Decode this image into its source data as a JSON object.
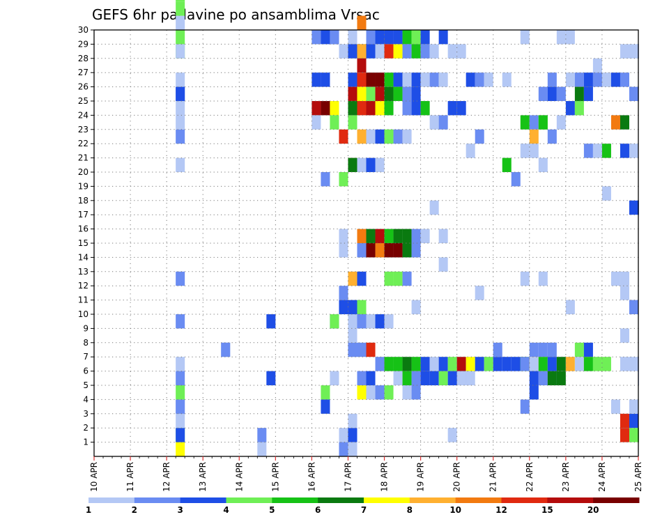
{
  "chart_data": {
    "type": "heatmap",
    "title": "GEFS 6hr padavine po ansamblima Vrsac",
    "xlabel": "",
    "ylabel": "",
    "x_tick_labels": [
      "10 APR",
      "11 APR",
      "12 APR",
      "13 APR",
      "14 APR",
      "15 APR",
      "16 APR",
      "17 APR",
      "18 APR",
      "19 APR",
      "20 APR",
      "21 APR",
      "22 APR",
      "23 APR",
      "24 APR",
      "25 APR"
    ],
    "x_range": [
      0,
      60
    ],
    "x_unit": "6-hour steps from 10 APR 00Z",
    "y_tick_labels": [
      "1",
      "2",
      "3",
      "4",
      "5",
      "6",
      "7",
      "8",
      "9",
      "10",
      "11",
      "12",
      "13",
      "14",
      "15",
      "16",
      "17",
      "18",
      "19",
      "20",
      "21",
      "22",
      "23",
      "24",
      "25",
      "26",
      "27",
      "28",
      "29",
      "30"
    ],
    "y_range": [
      0,
      30
    ],
    "grid": true,
    "colorbar": {
      "placement": "bottom",
      "colors": [
        "#b4c8f5",
        "#6a8cf2",
        "#1e4ee6",
        "#6fef56",
        "#16c216",
        "#0a7a10",
        "#ffff00",
        "#ffb030",
        "#f27a10",
        "#e02a10",
        "#b40c0c",
        "#780000"
      ],
      "labels": [
        "1",
        "2",
        "3",
        "4",
        "5",
        "6",
        "7",
        "8",
        "10",
        "12",
        "15",
        "20"
      ],
      "level_note": "color index 1..12 from light blue to dark red"
    },
    "cells": [
      [
        9,
        0,
        7
      ],
      [
        9,
        1,
        4
      ],
      [
        9,
        1,
        3
      ],
      [
        9,
        2,
        1
      ],
      [
        9,
        3,
        1
      ],
      [
        9,
        3,
        2
      ],
      [
        9,
        4,
        4
      ],
      [
        9,
        5,
        2
      ],
      [
        9,
        6,
        1
      ],
      [
        9,
        9,
        2
      ],
      [
        9,
        12,
        2
      ],
      [
        9,
        20,
        1
      ],
      [
        9,
        22,
        2
      ],
      [
        9,
        23,
        1
      ],
      [
        9,
        24,
        1
      ],
      [
        9,
        25,
        2
      ],
      [
        9,
        25,
        3
      ],
      [
        9,
        26,
        1
      ],
      [
        9,
        28,
        4
      ],
      [
        9,
        28,
        1
      ],
      [
        9,
        29,
        4
      ],
      [
        9,
        30,
        1
      ],
      [
        9,
        31,
        4
      ],
      [
        9,
        32,
        4
      ],
      [
        14,
        7,
        1
      ],
      [
        14,
        7,
        2
      ],
      [
        18,
        0,
        1
      ],
      [
        18,
        1,
        2
      ],
      [
        19,
        9,
        3
      ],
      [
        19,
        5,
        3
      ],
      [
        24,
        29,
        2
      ],
      [
        24,
        26,
        3
      ],
      [
        24,
        24,
        11
      ],
      [
        24,
        23,
        1
      ],
      [
        25,
        29,
        3
      ],
      [
        25,
        26,
        3
      ],
      [
        25,
        24,
        12
      ],
      [
        25,
        19,
        2
      ],
      [
        25,
        4,
        4
      ],
      [
        25,
        3,
        3
      ],
      [
        26,
        29,
        3
      ],
      [
        26,
        29,
        2
      ],
      [
        26,
        24,
        7
      ],
      [
        26,
        23,
        4
      ],
      [
        26,
        9,
        3
      ],
      [
        26,
        9,
        4
      ],
      [
        26,
        5,
        1
      ],
      [
        27,
        28,
        1
      ],
      [
        27,
        22,
        10
      ],
      [
        27,
        19,
        4
      ],
      [
        27,
        15,
        1
      ],
      [
        27,
        10,
        3
      ],
      [
        27,
        11,
        2
      ],
      [
        27,
        14,
        1
      ],
      [
        27,
        1,
        1
      ],
      [
        27,
        0,
        2
      ],
      [
        28,
        29,
        1
      ],
      [
        28,
        28,
        3
      ],
      [
        28,
        26,
        3
      ],
      [
        28,
        25,
        11
      ],
      [
        28,
        24,
        4
      ],
      [
        28,
        24,
        6
      ],
      [
        28,
        23,
        4
      ],
      [
        28,
        20,
        8
      ],
      [
        28,
        20,
        6
      ],
      [
        28,
        12,
        8
      ],
      [
        28,
        10,
        3
      ],
      [
        28,
        9,
        1
      ],
      [
        28,
        7,
        1
      ],
      [
        28,
        1,
        3
      ],
      [
        28,
        0,
        1
      ],
      [
        28,
        7,
        2
      ],
      [
        28,
        8,
        1
      ],
      [
        28,
        2,
        1
      ],
      [
        29,
        30,
        9
      ],
      [
        29,
        28,
        6
      ],
      [
        29,
        28,
        8
      ],
      [
        29,
        27,
        11
      ],
      [
        29,
        26,
        10
      ],
      [
        29,
        25,
        7
      ],
      [
        29,
        24,
        10
      ],
      [
        29,
        22,
        8
      ],
      [
        29,
        20,
        1
      ],
      [
        29,
        15,
        9
      ],
      [
        29,
        14,
        2
      ],
      [
        29,
        12,
        3
      ],
      [
        29,
        10,
        4
      ],
      [
        29,
        9,
        2
      ],
      [
        29,
        7,
        2
      ],
      [
        29,
        5,
        2
      ],
      [
        29,
        4,
        7
      ],
      [
        30,
        29,
        2
      ],
      [
        30,
        28,
        3
      ],
      [
        30,
        26,
        12
      ],
      [
        30,
        25,
        4
      ],
      [
        30,
        24,
        11
      ],
      [
        30,
        22,
        1
      ],
      [
        30,
        20,
        3
      ],
      [
        30,
        15,
        6
      ],
      [
        30,
        14,
        12
      ],
      [
        30,
        9,
        1
      ],
      [
        30,
        7,
        10
      ],
      [
        30,
        4,
        1
      ],
      [
        30,
        5,
        3
      ],
      [
        31,
        29,
        3
      ],
      [
        31,
        28,
        1
      ],
      [
        31,
        26,
        12
      ],
      [
        31,
        25,
        11
      ],
      [
        31,
        24,
        7
      ],
      [
        31,
        22,
        3
      ],
      [
        31,
        20,
        1
      ],
      [
        31,
        15,
        11
      ],
      [
        31,
        14,
        9
      ],
      [
        31,
        9,
        3
      ],
      [
        31,
        6,
        2
      ],
      [
        31,
        4,
        2
      ],
      [
        32,
        29,
        3
      ],
      [
        32,
        28,
        10
      ],
      [
        32,
        26,
        5
      ],
      [
        32,
        25,
        6
      ],
      [
        32,
        24,
        5
      ],
      [
        32,
        22,
        4
      ],
      [
        32,
        15,
        5
      ],
      [
        32,
        14,
        12
      ],
      [
        32,
        9,
        1
      ],
      [
        32,
        6,
        5
      ],
      [
        32,
        4,
        4
      ],
      [
        32,
        12,
        4
      ],
      [
        33,
        29,
        3
      ],
      [
        33,
        28,
        7
      ],
      [
        33,
        26,
        3
      ],
      [
        33,
        25,
        5
      ],
      [
        33,
        22,
        2
      ],
      [
        33,
        15,
        6
      ],
      [
        33,
        14,
        12
      ],
      [
        33,
        12,
        4
      ],
      [
        33,
        6,
        5
      ],
      [
        33,
        5,
        1
      ],
      [
        34,
        29,
        5
      ],
      [
        34,
        28,
        2
      ],
      [
        34,
        26,
        1
      ],
      [
        34,
        25,
        2
      ],
      [
        34,
        24,
        2
      ],
      [
        34,
        22,
        1
      ],
      [
        34,
        15,
        6
      ],
      [
        34,
        14,
        6
      ],
      [
        34,
        12,
        2
      ],
      [
        34,
        6,
        6
      ],
      [
        34,
        5,
        5
      ],
      [
        34,
        4,
        1
      ],
      [
        35,
        29,
        4
      ],
      [
        35,
        28,
        5
      ],
      [
        35,
        26,
        3
      ],
      [
        35,
        25,
        3
      ],
      [
        35,
        24,
        3
      ],
      [
        35,
        15,
        2
      ],
      [
        35,
        14,
        2
      ],
      [
        35,
        10,
        1
      ],
      [
        35,
        6,
        5
      ],
      [
        35,
        4,
        2
      ],
      [
        35,
        5,
        2
      ],
      [
        36,
        29,
        3
      ],
      [
        36,
        28,
        2
      ],
      [
        36,
        26,
        1
      ],
      [
        36,
        24,
        5
      ],
      [
        36,
        15,
        1
      ],
      [
        36,
        6,
        3
      ],
      [
        36,
        5,
        3
      ],
      [
        37,
        28,
        1
      ],
      [
        37,
        26,
        2
      ],
      [
        37,
        23,
        1
      ],
      [
        37,
        17,
        1
      ],
      [
        37,
        6,
        1
      ],
      [
        37,
        5,
        3
      ],
      [
        38,
        29,
        3
      ],
      [
        38,
        26,
        1
      ],
      [
        38,
        23,
        2
      ],
      [
        38,
        15,
        1
      ],
      [
        38,
        13,
        1
      ],
      [
        38,
        5,
        4
      ],
      [
        38,
        6,
        3
      ],
      [
        39,
        28,
        1
      ],
      [
        39,
        24,
        3
      ],
      [
        39,
        6,
        4
      ],
      [
        39,
        5,
        3
      ],
      [
        39,
        1,
        1
      ],
      [
        40,
        28,
        1
      ],
      [
        40,
        24,
        3
      ],
      [
        40,
        6,
        11
      ],
      [
        40,
        5,
        3
      ],
      [
        40,
        5,
        1
      ],
      [
        41,
        26,
        3
      ],
      [
        41,
        21,
        1
      ],
      [
        41,
        6,
        7
      ],
      [
        41,
        5,
        1
      ],
      [
        42,
        26,
        2
      ],
      [
        42,
        22,
        2
      ],
      [
        42,
        11,
        1
      ],
      [
        42,
        6,
        3
      ],
      [
        43,
        26,
        1
      ],
      [
        43,
        6,
        4
      ],
      [
        44,
        6,
        3
      ],
      [
        44,
        7,
        2
      ],
      [
        45,
        26,
        1
      ],
      [
        45,
        20,
        5
      ],
      [
        45,
        6,
        3
      ],
      [
        46,
        19,
        2
      ],
      [
        46,
        6,
        3
      ],
      [
        47,
        29,
        1
      ],
      [
        47,
        23,
        5
      ],
      [
        47,
        21,
        1
      ],
      [
        47,
        12,
        1
      ],
      [
        47,
        6,
        5
      ],
      [
        47,
        6,
        2
      ],
      [
        47,
        3,
        2
      ],
      [
        48,
        23,
        2
      ],
      [
        48,
        22,
        8
      ],
      [
        48,
        21,
        1
      ],
      [
        48,
        7,
        2
      ],
      [
        48,
        6,
        8
      ],
      [
        48,
        6,
        1
      ],
      [
        48,
        5,
        3
      ],
      [
        48,
        4,
        3
      ],
      [
        49,
        25,
        2
      ],
      [
        49,
        23,
        4
      ],
      [
        49,
        23,
        5
      ],
      [
        49,
        20,
        1
      ],
      [
        49,
        12,
        1
      ],
      [
        49,
        7,
        2
      ],
      [
        49,
        6,
        5
      ],
      [
        49,
        5,
        2
      ],
      [
        50,
        26,
        2
      ],
      [
        50,
        25,
        3
      ],
      [
        50,
        22,
        2
      ],
      [
        50,
        7,
        2
      ],
      [
        50,
        6,
        3
      ],
      [
        50,
        5,
        2
      ],
      [
        50,
        5,
        6
      ],
      [
        51,
        29,
        1
      ],
      [
        51,
        25,
        2
      ],
      [
        51,
        23,
        1
      ],
      [
        51,
        6,
        6
      ],
      [
        51,
        5,
        6
      ],
      [
        52,
        29,
        1
      ],
      [
        52,
        26,
        1
      ],
      [
        52,
        24,
        3
      ],
      [
        52,
        10,
        1
      ],
      [
        52,
        6,
        8
      ],
      [
        53,
        26,
        2
      ],
      [
        53,
        25,
        6
      ],
      [
        53,
        24,
        4
      ],
      [
        53,
        7,
        4
      ],
      [
        53,
        6,
        7
      ],
      [
        53,
        6,
        1
      ],
      [
        54,
        26,
        3
      ],
      [
        54,
        25,
        3
      ],
      [
        54,
        21,
        2
      ],
      [
        54,
        7,
        3
      ],
      [
        54,
        6,
        5
      ],
      [
        55,
        27,
        1
      ],
      [
        55,
        26,
        2
      ],
      [
        55,
        21,
        1
      ],
      [
        55,
        6,
        4
      ],
      [
        56,
        26,
        1
      ],
      [
        56,
        21,
        5
      ],
      [
        56,
        18,
        1
      ],
      [
        56,
        6,
        4
      ],
      [
        57,
        26,
        3
      ],
      [
        57,
        23,
        9
      ],
      [
        57,
        12,
        1
      ],
      [
        57,
        3,
        1
      ],
      [
        58,
        28,
        1
      ],
      [
        58,
        26,
        2
      ],
      [
        58,
        23,
        6
      ],
      [
        58,
        21,
        3
      ],
      [
        58,
        12,
        1
      ],
      [
        58,
        11,
        1
      ],
      [
        58,
        8,
        1
      ],
      [
        58,
        6,
        1
      ],
      [
        58,
        2,
        10
      ],
      [
        58,
        1,
        10
      ],
      [
        59,
        28,
        1
      ],
      [
        59,
        25,
        2
      ],
      [
        59,
        21,
        1
      ],
      [
        59,
        17,
        3
      ],
      [
        59,
        10,
        2
      ],
      [
        59,
        6,
        1
      ],
      [
        59,
        2,
        3
      ],
      [
        59,
        1,
        4
      ],
      [
        59,
        3,
        1
      ],
      [
        60,
        28,
        1
      ],
      [
        60,
        25,
        1
      ],
      [
        60,
        17,
        2
      ],
      [
        60,
        5,
        1
      ],
      [
        60,
        6,
        1
      ],
      [
        60,
        1,
        4
      ]
    ]
  }
}
